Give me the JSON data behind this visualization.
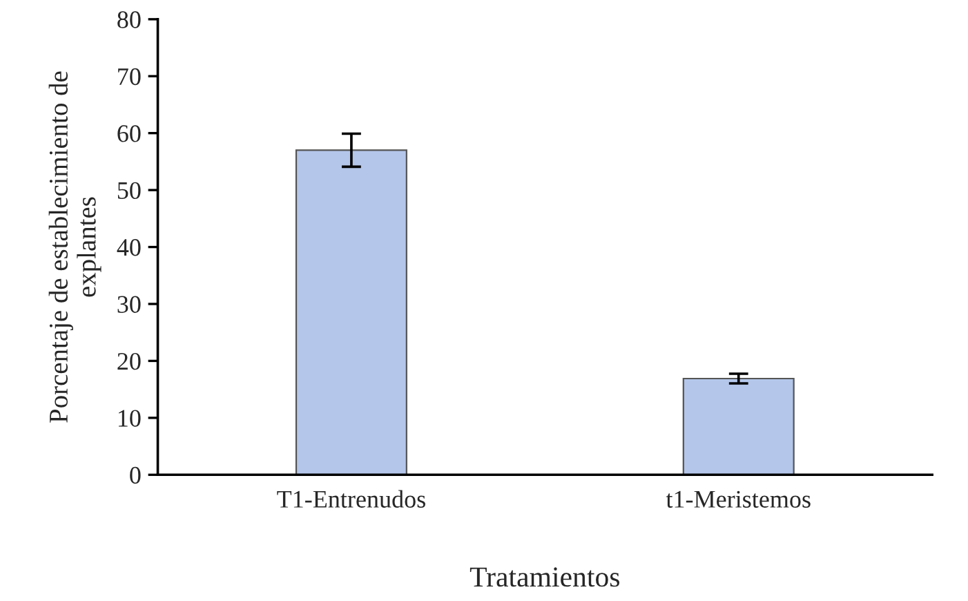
{
  "chart_data": {
    "type": "bar",
    "xlabel": "Tratamientos",
    "ylabel": "Porcentaje de establecimiento de\nexplantes",
    "categories": [
      "T1-Entrenudos",
      "t1-Meristemos"
    ],
    "values": [
      57,
      16.9
    ],
    "errors": [
      2.9,
      0.85
    ],
    "color": "#b4c6ea",
    "ylim": [
      0,
      80
    ],
    "yticks": [
      0,
      10,
      20,
      30,
      40,
      50,
      60,
      70,
      80
    ],
    "grid": false
  }
}
